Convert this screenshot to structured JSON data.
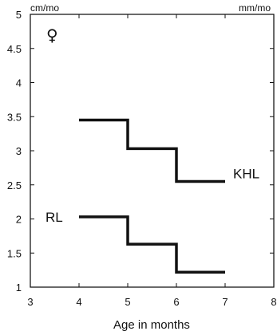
{
  "chart_data": {
    "type": "line",
    "title": "",
    "xlabel": "Age in months",
    "ylabel_left": "cm/mo",
    "ylabel_right": "mm/mo",
    "annotation_symbol": "♀",
    "xlim": [
      3,
      8
    ],
    "ylim": [
      1,
      5
    ],
    "x_ticks": [
      3,
      4,
      5,
      6,
      7,
      8
    ],
    "y_ticks": [
      1,
      1.5,
      2,
      2.5,
      3,
      3.5,
      4,
      4.5,
      5
    ],
    "x_tick_labels": [
      "3",
      "4",
      "5",
      "6",
      "7",
      "8"
    ],
    "y_tick_labels": [
      "1",
      "1.5",
      "2",
      "2.5",
      "3",
      "3.5",
      "4",
      "4.5",
      "5"
    ],
    "grid": false,
    "series": [
      {
        "name": "KHL",
        "style": "step",
        "points": [
          {
            "x0": 4,
            "x1": 5,
            "y": 3.45
          },
          {
            "x0": 5,
            "x1": 6,
            "y": 3.03
          },
          {
            "x0": 6,
            "x1": 7,
            "y": 2.55
          }
        ]
      },
      {
        "name": "RL",
        "style": "step",
        "points": [
          {
            "x0": 4,
            "x1": 5,
            "y": 2.03
          },
          {
            "x0": 5,
            "x1": 6,
            "y": 1.63
          },
          {
            "x0": 6,
            "x1": 7,
            "y": 1.22
          }
        ]
      }
    ],
    "colors": {
      "axis": "#111111",
      "series": "#111111",
      "background": "#ffffff"
    }
  }
}
